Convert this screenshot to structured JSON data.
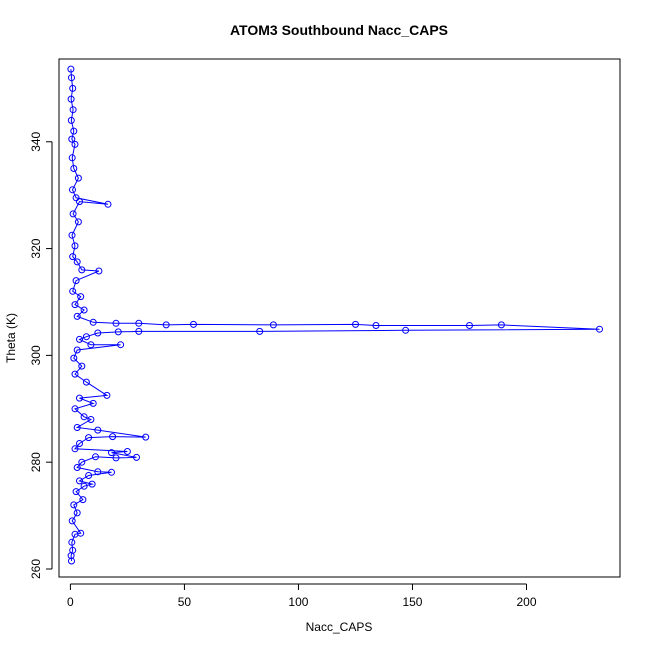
{
  "chart_data": {
    "type": "scatter",
    "title": "ATOM3 Southbound Nacc_CAPS",
    "xlabel": "Nacc_CAPS",
    "ylabel": "Theta (K)",
    "xlim": [
      -5,
      241
    ],
    "ylim": [
      258.5,
      355.5
    ],
    "xticks": [
      0,
      50,
      100,
      150,
      200
    ],
    "yticks": [
      260,
      280,
      300,
      320,
      340
    ],
    "grid": false,
    "legend": "none",
    "series_color": "#0000ff",
    "marker": "open-circle",
    "connected_lines": true,
    "series": [
      {
        "points": [
          [
            0.2,
            353.6
          ],
          [
            0.5,
            352.0
          ],
          [
            1.0,
            350.0
          ],
          [
            0.3,
            348.0
          ],
          [
            1.2,
            346.0
          ],
          [
            0.4,
            344.0
          ],
          [
            1.5,
            342.0
          ],
          [
            0.6,
            340.5
          ],
          [
            2.0,
            339.5
          ],
          [
            0.8,
            337.0
          ],
          [
            1.5,
            335.0
          ],
          [
            3.5,
            333.2
          ],
          [
            0.9,
            331.0
          ],
          [
            2.5,
            329.5
          ],
          [
            16.5,
            328.3
          ],
          [
            4.0,
            328.8
          ],
          [
            1.2,
            326.5
          ],
          [
            3.5,
            325.0
          ],
          [
            0.7,
            322.5
          ],
          [
            2.0,
            320.5
          ],
          [
            1.0,
            318.5
          ],
          [
            3.0,
            317.5
          ],
          [
            5.0,
            316.0
          ],
          [
            12.5,
            315.8
          ],
          [
            2.5,
            314.0
          ],
          [
            1.0,
            312.0
          ],
          [
            4.5,
            311.0
          ],
          [
            2.0,
            309.5
          ],
          [
            6.0,
            308.5
          ],
          [
            3.0,
            307.3
          ],
          [
            10.0,
            306.2
          ],
          [
            20.0,
            306.0
          ],
          [
            30.0,
            306.0
          ],
          [
            42.0,
            305.7
          ],
          [
            54.0,
            305.8
          ],
          [
            89.0,
            305.7
          ],
          [
            125.0,
            305.8
          ],
          [
            134.0,
            305.6
          ],
          [
            175.0,
            305.6
          ],
          [
            189.0,
            305.7
          ],
          [
            232.0,
            304.9
          ],
          [
            147.0,
            304.7
          ],
          [
            83.0,
            304.5
          ],
          [
            30.0,
            304.5
          ],
          [
            21.0,
            304.4
          ],
          [
            12.0,
            304.2
          ],
          [
            7.0,
            303.5
          ],
          [
            4.0,
            303.0
          ],
          [
            9.0,
            302.0
          ],
          [
            22.0,
            302.0
          ],
          [
            3.0,
            301.0
          ],
          [
            1.5,
            299.5
          ],
          [
            5.0,
            298.0
          ],
          [
            2.0,
            296.5
          ],
          [
            7.0,
            295.0
          ],
          [
            16.0,
            292.5
          ],
          [
            4.0,
            292.0
          ],
          [
            10.0,
            291.0
          ],
          [
            2.0,
            290.0
          ],
          [
            6.0,
            288.5
          ],
          [
            9.0,
            288.0
          ],
          [
            3.0,
            286.5
          ],
          [
            12.0,
            286.0
          ],
          [
            33.0,
            284.7
          ],
          [
            18.5,
            284.8
          ],
          [
            8.0,
            284.6
          ],
          [
            4.0,
            283.5
          ],
          [
            2.0,
            282.5
          ],
          [
            25.0,
            282.0
          ],
          [
            18.0,
            281.8
          ],
          [
            29.0,
            280.9
          ],
          [
            20.0,
            280.8
          ],
          [
            11.0,
            281.0
          ],
          [
            5.0,
            280.0
          ],
          [
            3.0,
            279.0
          ],
          [
            12.0,
            278.2
          ],
          [
            18.0,
            278.1
          ],
          [
            8.0,
            277.5
          ],
          [
            4.0,
            276.5
          ],
          [
            9.5,
            275.9
          ],
          [
            6.0,
            275.5
          ],
          [
            2.5,
            274.5
          ],
          [
            5.5,
            273.0
          ],
          [
            1.5,
            272.0
          ],
          [
            3.0,
            270.5
          ],
          [
            0.8,
            269.0
          ],
          [
            4.5,
            266.7
          ],
          [
            2.0,
            266.5
          ],
          [
            0.6,
            265.0
          ],
          [
            1.0,
            263.5
          ],
          [
            0.3,
            262.5
          ],
          [
            0.5,
            261.5
          ]
        ]
      }
    ]
  }
}
